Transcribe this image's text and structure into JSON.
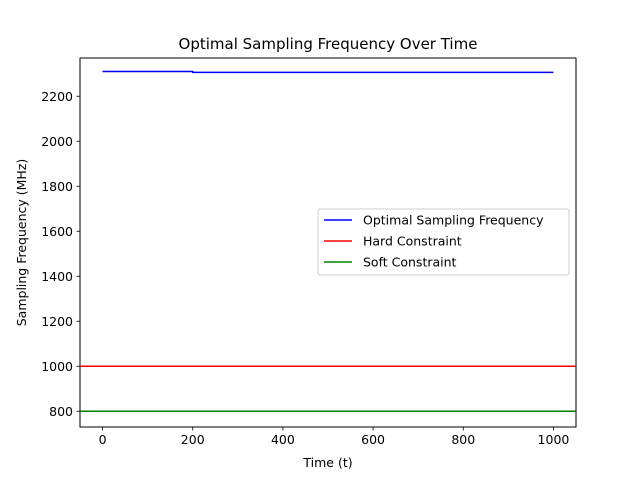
{
  "chart_data": {
    "type": "line",
    "title": "Optimal Sampling Frequency Over Time",
    "xlabel": "Time (t)",
    "ylabel": "Sampling Frequency (MHz)",
    "xlim": [
      -50,
      1050
    ],
    "ylim": [
      730,
      2370
    ],
    "x_ticks": [
      0,
      200,
      400,
      600,
      800,
      1000
    ],
    "y_ticks": [
      800,
      1000,
      1200,
      1400,
      1600,
      1800,
      2000,
      2200
    ],
    "grid": false,
    "legend_position": "center-right",
    "series": [
      {
        "name": "Optimal Sampling Frequency",
        "color": "#0000ff",
        "kind": "line",
        "points": [
          [
            0,
            2310
          ],
          [
            200,
            2310
          ],
          [
            200,
            2306
          ],
          [
            1000,
            2306
          ]
        ]
      },
      {
        "name": "Hard Constraint",
        "color": "#ff0000",
        "kind": "hline",
        "value": 1000
      },
      {
        "name": "Soft Constraint",
        "color": "#008000",
        "kind": "hline",
        "value": 800
      }
    ]
  }
}
